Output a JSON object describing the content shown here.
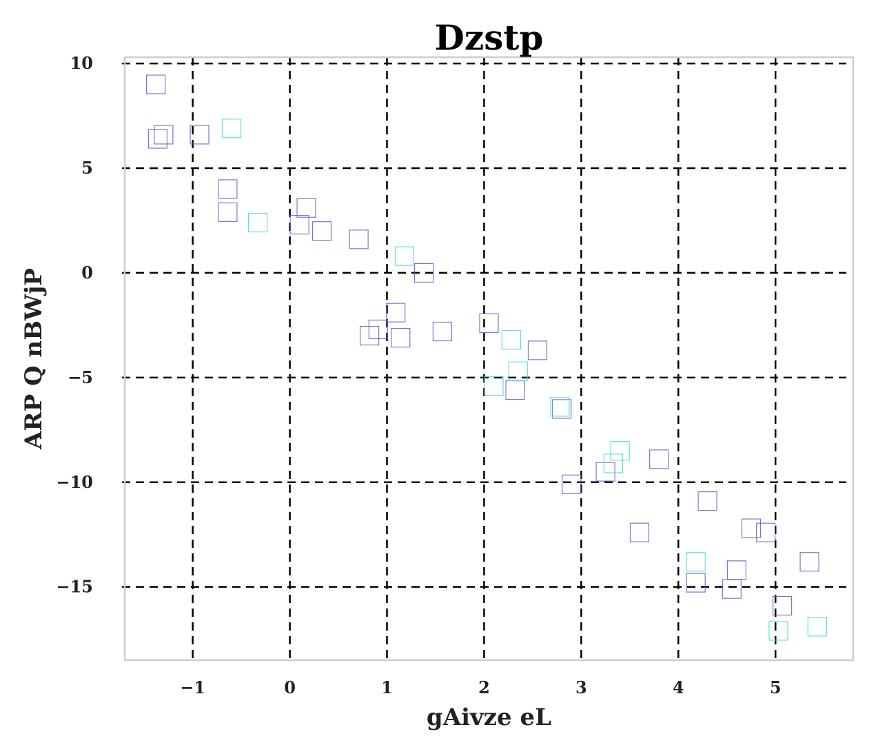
{
  "chart_data": {
    "type": "scatter",
    "title": "Dzstp",
    "xlabel": "gAivze eL",
    "ylabel": "ARP Q nBWjP",
    "xlim": [
      -1.7,
      5.8
    ],
    "ylim": [
      -18.5,
      10.3
    ],
    "xticks": [
      -1,
      0,
      1,
      2,
      3,
      4,
      5
    ],
    "yticks": [
      10,
      5,
      0,
      -5,
      -10,
      -15
    ],
    "xtick_labels": [
      "−1",
      "0",
      "1",
      "2",
      "3",
      "4",
      "5"
    ],
    "ytick_labels": [
      "10",
      "5",
      "0",
      "−5",
      "−10",
      "−15"
    ],
    "grid": true,
    "grid_style": "dashed",
    "marker": "open-square",
    "series": [
      {
        "color": "#6a5acd",
        "points": [
          [
            -1.38,
            9.0
          ],
          [
            -1.36,
            6.4
          ],
          [
            -1.3,
            6.6
          ],
          [
            -0.93,
            6.6
          ],
          [
            -0.64,
            4.0
          ],
          [
            -0.64,
            2.9
          ],
          [
            0.1,
            2.3
          ],
          [
            0.17,
            3.1
          ],
          [
            0.33,
            2.0
          ],
          [
            0.71,
            1.6
          ],
          [
            1.38,
            0.0
          ],
          [
            1.09,
            -1.9
          ],
          [
            0.91,
            -2.7
          ],
          [
            0.82,
            -3.0
          ],
          [
            1.14,
            -3.1
          ],
          [
            1.57,
            -2.8
          ],
          [
            2.05,
            -2.4
          ],
          [
            2.55,
            -3.7
          ],
          [
            2.32,
            -5.6
          ],
          [
            2.8,
            -6.5
          ],
          [
            2.9,
            -10.1
          ],
          [
            3.25,
            -9.5
          ],
          [
            3.8,
            -8.9
          ],
          [
            4.3,
            -10.9
          ],
          [
            3.6,
            -12.4
          ],
          [
            4.75,
            -12.2
          ],
          [
            4.9,
            -12.4
          ],
          [
            5.35,
            -13.8
          ],
          [
            4.6,
            -14.2
          ],
          [
            4.18,
            -14.8
          ],
          [
            4.55,
            -15.1
          ],
          [
            5.07,
            -15.9
          ]
        ]
      },
      {
        "color": "#40e0d0",
        "points": [
          [
            -0.6,
            6.9
          ],
          [
            -0.33,
            2.4
          ],
          [
            1.18,
            0.8
          ],
          [
            2.28,
            -3.2
          ],
          [
            2.35,
            -4.7
          ],
          [
            2.1,
            -5.4
          ],
          [
            2.78,
            -6.4
          ],
          [
            3.4,
            -8.5
          ],
          [
            3.33,
            -9.1
          ],
          [
            4.18,
            -13.8
          ],
          [
            5.03,
            -17.1
          ],
          [
            5.43,
            -16.9
          ]
        ]
      }
    ]
  }
}
